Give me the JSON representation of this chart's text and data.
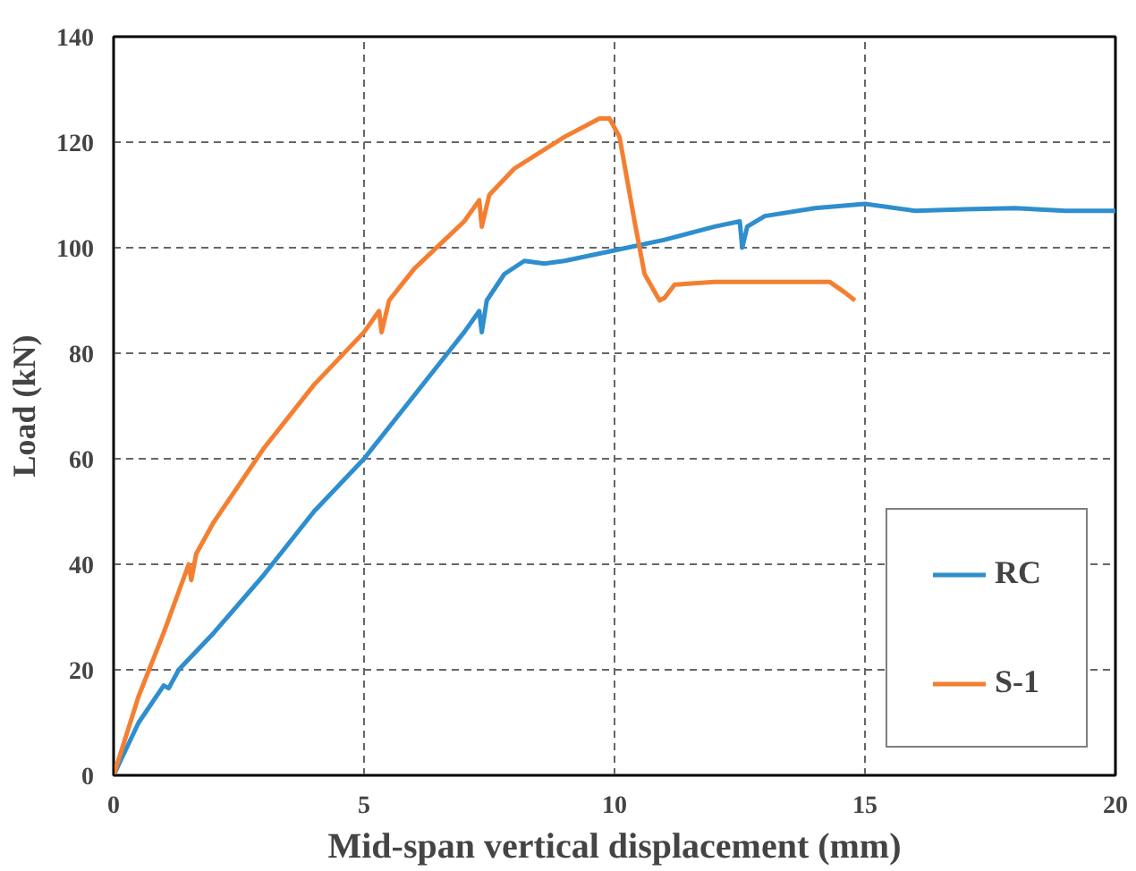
{
  "chart_data": {
    "type": "line",
    "xlabel": "Mid-span vertical displacement (mm)",
    "ylabel": "Load (kN)",
    "xlim": [
      0,
      20
    ],
    "ylim": [
      0,
      140
    ],
    "xticks": [
      0,
      5,
      10,
      15,
      20
    ],
    "yticks": [
      0,
      20,
      40,
      60,
      80,
      100,
      120,
      140
    ],
    "grid": true,
    "line_style": "solid",
    "legend": "bottom right",
    "series": [
      {
        "name": "RC",
        "color": "#2e8ece",
        "x": [
          0,
          0.5,
          1,
          1.1,
          1.3,
          1.6,
          2,
          3,
          4,
          5,
          6,
          7,
          7.3,
          7.35,
          7.45,
          7.8,
          8.2,
          8.6,
          9,
          10,
          11,
          12,
          12.5,
          12.55,
          12.65,
          13,
          14,
          15,
          16,
          17,
          18,
          19,
          20
        ],
        "values": [
          0,
          10,
          17,
          16.5,
          20,
          23,
          27,
          38,
          50,
          60,
          72,
          84,
          88,
          84,
          90,
          95,
          97.5,
          97,
          97.5,
          99.5,
          101.5,
          104,
          105,
          100,
          104,
          106,
          107.5,
          108.3,
          107,
          107.3,
          107.5,
          107,
          107
        ]
      },
      {
        "name": "S-1",
        "color": "#f47f31",
        "x": [
          0,
          0.5,
          1,
          1.5,
          1.55,
          1.65,
          2,
          3,
          4,
          5,
          5.3,
          5.35,
          5.5,
          6,
          7,
          7.3,
          7.35,
          7.5,
          8,
          9,
          9.7,
          9.9,
          10.1,
          10.4,
          10.6,
          10.9,
          11,
          11.2,
          12,
          14,
          14.3,
          14.6,
          14.8
        ],
        "values": [
          0,
          15,
          27,
          40,
          37,
          42,
          48,
          62,
          74,
          84,
          88,
          84,
          90,
          96,
          105,
          109,
          104,
          110,
          115,
          121,
          124.5,
          124.5,
          121,
          105,
          95,
          90,
          90.5,
          93,
          93.5,
          93.5,
          93.5,
          91.5,
          90
        ]
      }
    ]
  }
}
